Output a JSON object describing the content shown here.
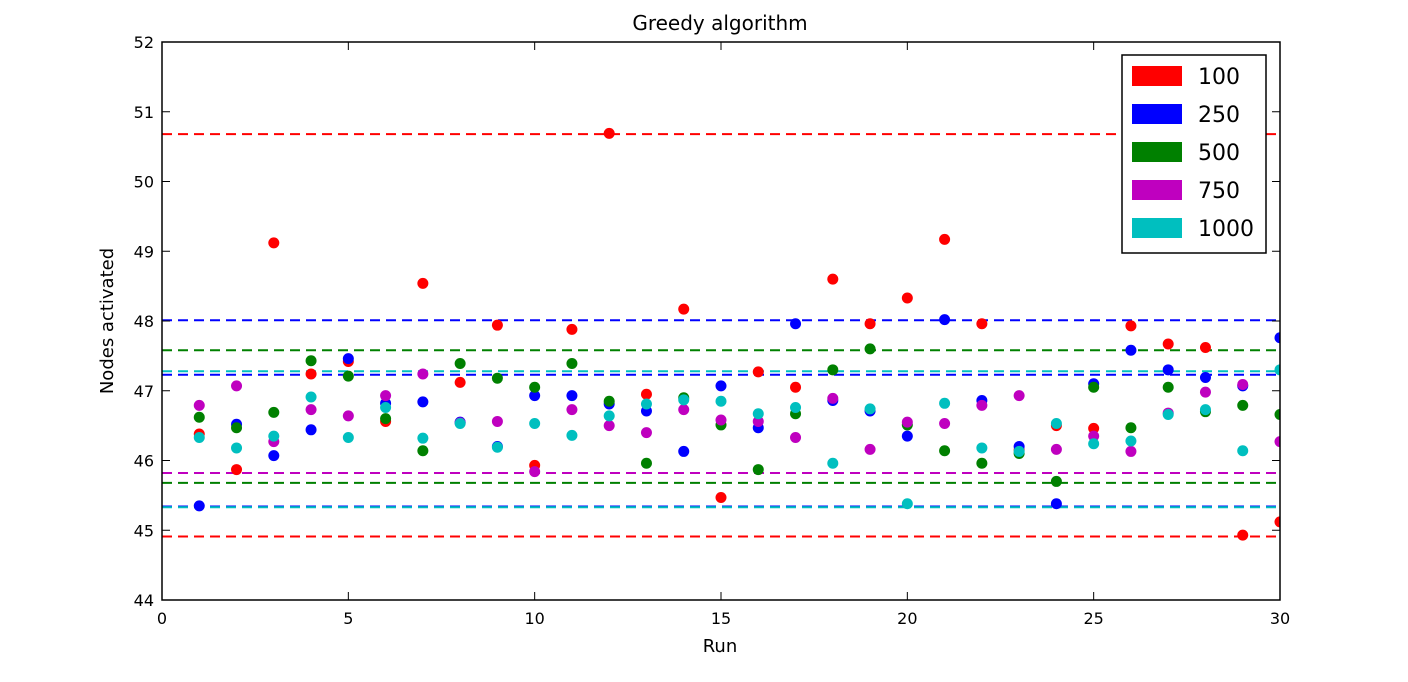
{
  "chart_data": {
    "type": "scatter",
    "title": "Greedy algorithm",
    "xlabel": "Run",
    "ylabel": "Nodes activated",
    "xlim": [
      0,
      30
    ],
    "ylim": [
      44,
      52
    ],
    "xticks": [
      0,
      5,
      10,
      15,
      20,
      25,
      30
    ],
    "yticks": [
      44,
      45,
      46,
      47,
      48,
      49,
      50,
      51,
      52
    ],
    "grid": false,
    "legend_position": "top-right",
    "x": [
      1,
      2,
      3,
      4,
      5,
      6,
      7,
      8,
      9,
      10,
      11,
      12,
      13,
      14,
      15,
      16,
      17,
      18,
      19,
      20,
      21,
      22,
      23,
      24,
      25,
      26,
      27,
      28,
      29,
      30
    ],
    "series": [
      {
        "name": "100",
        "color": "#ff0000",
        "values": [
          46.38,
          45.87,
          49.12,
          47.24,
          47.42,
          46.56,
          48.54,
          47.12,
          47.94,
          45.93,
          47.88,
          50.69,
          46.95,
          48.17,
          45.47,
          47.27,
          47.05,
          48.6,
          47.96,
          48.33,
          49.17,
          47.96,
          46.15,
          46.5,
          46.46,
          47.93,
          47.67,
          47.62,
          44.93,
          45.12
        ],
        "bands": [
          50.68,
          44.91
        ]
      },
      {
        "name": "250",
        "color": "#0000ff",
        "values": [
          45.35,
          46.52,
          46.07,
          46.44,
          47.46,
          46.82,
          46.84,
          46.55,
          46.2,
          46.93,
          46.93,
          46.81,
          46.71,
          46.13,
          47.07,
          46.47,
          47.96,
          46.86,
          46.71,
          46.35,
          48.02,
          46.86,
          46.2,
          45.38,
          47.1,
          47.58,
          47.3,
          47.19,
          47.07,
          47.76
        ],
        "bands": [
          48.01,
          47.23,
          45.34
        ]
      },
      {
        "name": "500",
        "color": "#008000",
        "values": [
          46.62,
          46.47,
          46.69,
          47.43,
          47.21,
          46.6,
          46.14,
          47.39,
          47.18,
          47.05,
          47.39,
          46.85,
          45.96,
          46.9,
          46.51,
          45.87,
          46.67,
          47.3,
          47.6,
          46.51,
          46.14,
          45.96,
          46.1,
          45.7,
          47.05,
          46.47,
          47.05,
          46.7,
          46.79,
          46.66
        ],
        "bands": [
          47.58,
          45.68
        ]
      },
      {
        "name": "750",
        "color": "#bf00bf",
        "values": [
          46.79,
          47.07,
          46.27,
          46.73,
          46.64,
          46.93,
          47.24,
          46.54,
          46.56,
          45.84,
          46.73,
          46.5,
          46.4,
          46.73,
          46.58,
          46.56,
          46.33,
          46.89,
          46.16,
          46.55,
          46.53,
          46.79,
          46.93,
          46.16,
          46.35,
          46.13,
          46.68,
          46.98,
          47.09,
          46.27
        ],
        "bands": [
          45.82
        ]
      },
      {
        "name": "1000",
        "color": "#00bfbf",
        "values": [
          46.33,
          46.18,
          46.35,
          46.91,
          46.33,
          46.76,
          46.32,
          46.53,
          46.19,
          46.53,
          46.36,
          46.64,
          46.81,
          46.87,
          46.85,
          46.67,
          46.76,
          45.96,
          46.74,
          45.38,
          46.82,
          46.18,
          46.13,
          46.53,
          46.24,
          46.28,
          46.66,
          46.73,
          46.14,
          47.3
        ],
        "bands": [
          47.28,
          45.33
        ]
      }
    ]
  }
}
